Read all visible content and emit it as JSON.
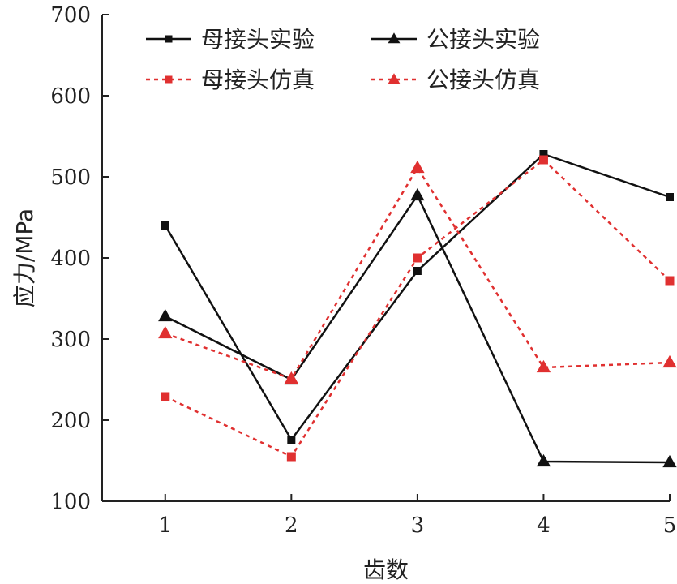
{
  "chart_data": {
    "type": "line",
    "title": "",
    "xlabel": "齿数",
    "ylabel": "应力/MPa",
    "x": [
      1,
      2,
      3,
      4,
      5
    ],
    "xlim": [
      0.5,
      5
    ],
    "ylim": [
      100,
      700
    ],
    "yticks": [
      100,
      200,
      300,
      400,
      500,
      600,
      700
    ],
    "xticks": [
      1,
      2,
      3,
      4,
      5
    ],
    "grid": false,
    "legend_position": "top",
    "series": [
      {
        "name": "母接头实验",
        "values": [
          440,
          176,
          384,
          528,
          475
        ],
        "color": "#111111",
        "marker": "square",
        "dash": "solid"
      },
      {
        "name": "公接头实验",
        "values": [
          328,
          250,
          477,
          149,
          148
        ],
        "color": "#111111",
        "marker": "triangle",
        "dash": "solid"
      },
      {
        "name": "母接头仿真",
        "values": [
          229,
          155,
          400,
          521,
          372
        ],
        "color": "#e03030",
        "marker": "square",
        "dash": "dotted"
      },
      {
        "name": "公接头仿真",
        "values": [
          307,
          251,
          511,
          265,
          271
        ],
        "color": "#e03030",
        "marker": "triangle",
        "dash": "dotted"
      }
    ]
  }
}
